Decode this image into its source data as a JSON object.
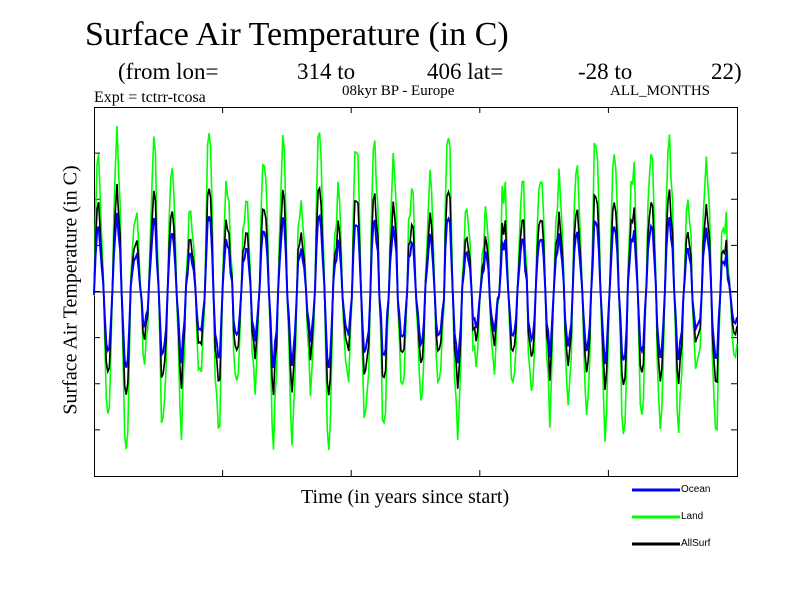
{
  "chart_data": {
    "type": "line",
    "title": "Surface Air Temperature (in C)",
    "subtitle_parts": [
      "(from lon=",
      "314 to",
      "406 lat=",
      "-28 to",
      "22)"
    ],
    "expt": "Expt = tctrr-tcosa",
    "region": "08kyr BP - Europe",
    "months": "ALL_MONTHS",
    "xlabel": "Time (in years since start)",
    "ylabel": "Surface Air Temperature (in C)",
    "reference_line": true,
    "legend_position": "bottom-right",
    "n_points": 420,
    "series": [
      {
        "name": "Ocean",
        "color": "#0000ff",
        "level": 0.02,
        "amplitude": 0.55
      },
      {
        "name": "Land",
        "color": "#00ff00",
        "level": 0.05,
        "amplitude": 1.15
      },
      {
        "name": "AllSurf",
        "color": "#000000",
        "level": 0.03,
        "amplitude": 0.75
      }
    ]
  }
}
